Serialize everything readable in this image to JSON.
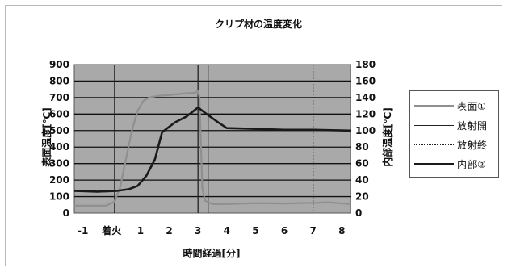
{
  "chart_data": {
    "type": "line",
    "title": "クリプ材の温度変化",
    "xlabel": "時間経過[分]",
    "ylabel_left": "表面温度[℃]",
    "ylabel_right": "内部温度[℃]",
    "x_tick_labels": [
      "-1",
      "着火",
      "1",
      "2",
      "3",
      "4",
      "5",
      "6",
      "7",
      "8"
    ],
    "y_left_ticks": [
      "0",
      "100",
      "200",
      "300",
      "400",
      "500",
      "600",
      "700",
      "800",
      "900"
    ],
    "y_right_ticks": [
      "0",
      "20",
      "40",
      "60",
      "80",
      "100",
      "120",
      "140",
      "160",
      "180"
    ],
    "xlim": [
      -1.3,
      8.3
    ],
    "ylim_left": [
      0,
      900
    ],
    "ylim_right": [
      0,
      180
    ],
    "grid": true,
    "legend_position": "right",
    "colors": {
      "plot_bg": "#a9a9a9",
      "surface": "#8f8f8f",
      "internal": "#1a1a1a",
      "marker": "#222222",
      "grid": "#111111"
    },
    "series": [
      {
        "name": "表面①",
        "axis": "left",
        "style": "solid-gray",
        "points": [
          [
            -1.3,
            45
          ],
          [
            -0.2,
            45
          ],
          [
            0.1,
            70
          ],
          [
            0.3,
            160
          ],
          [
            0.5,
            330
          ],
          [
            0.7,
            500
          ],
          [
            0.9,
            620
          ],
          [
            1.1,
            680
          ],
          [
            1.3,
            700
          ],
          [
            1.6,
            710
          ],
          [
            2.0,
            715
          ],
          [
            2.5,
            725
          ],
          [
            2.9,
            730
          ],
          [
            3.0,
            740
          ],
          [
            3.05,
            700
          ],
          [
            3.1,
            420
          ],
          [
            3.15,
            150
          ],
          [
            3.25,
            75
          ],
          [
            3.5,
            55
          ],
          [
            4.0,
            55
          ],
          [
            5.0,
            60
          ],
          [
            6.0,
            58
          ],
          [
            7.0,
            62
          ],
          [
            7.5,
            65
          ],
          [
            8.3,
            55
          ]
        ]
      },
      {
        "name": "内部②",
        "axis": "right",
        "style": "solid-black",
        "points": [
          [
            -1.3,
            27
          ],
          [
            -0.5,
            26
          ],
          [
            0.2,
            27
          ],
          [
            0.6,
            29
          ],
          [
            0.9,
            33
          ],
          [
            1.2,
            45
          ],
          [
            1.5,
            65
          ],
          [
            1.75,
            98
          ],
          [
            2.2,
            110
          ],
          [
            2.6,
            117
          ],
          [
            3.0,
            128
          ],
          [
            3.3,
            120
          ],
          [
            3.7,
            110
          ],
          [
            4.0,
            103
          ],
          [
            5.0,
            102
          ],
          [
            6.0,
            101
          ],
          [
            7.0,
            101
          ],
          [
            8.3,
            100
          ]
        ]
      }
    ],
    "markers": [
      {
        "name": "放射開",
        "x": 3.0,
        "style": "solid"
      },
      {
        "name": "放射終",
        "x": 7.0,
        "style": "dotted"
      }
    ],
    "extra_markers": [
      {
        "x": 0.1,
        "style": "solid"
      },
      {
        "x": 3.35,
        "style": "solid"
      }
    ]
  }
}
